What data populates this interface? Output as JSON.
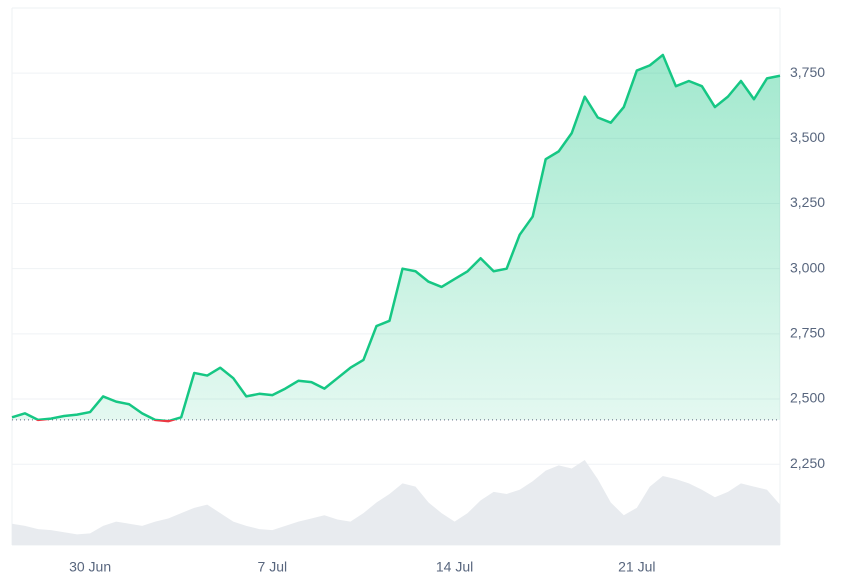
{
  "chart_data": {
    "type": "line",
    "categories": [
      null,
      null,
      null,
      null,
      null,
      null,
      "30 Jun",
      null,
      null,
      null,
      null,
      null,
      null,
      null,
      null,
      null,
      null,
      null,
      null,
      null,
      "7 Jul",
      null,
      null,
      null,
      null,
      null,
      null,
      null,
      null,
      null,
      null,
      null,
      null,
      null,
      "14 Jul",
      null,
      null,
      null,
      null,
      null,
      null,
      null,
      null,
      null,
      null,
      null,
      null,
      null,
      "21 Jul",
      null,
      null,
      null,
      null,
      null,
      null,
      null,
      null,
      null,
      null,
      null
    ],
    "series": [
      {
        "name": "Price",
        "color": "#16c784",
        "values": [
          2430,
          2445,
          2420,
          2425,
          2435,
          2440,
          2450,
          2510,
          2490,
          2480,
          2445,
          2420,
          2415,
          2430,
          2600,
          2590,
          2620,
          2580,
          2510,
          2520,
          2515,
          2540,
          2570,
          2565,
          2540,
          2580,
          2620,
          2650,
          2780,
          2800,
          3000,
          2990,
          2950,
          2930,
          2960,
          2990,
          3040,
          2990,
          3000,
          3130,
          3200,
          3420,
          3450,
          3520,
          3660,
          3580,
          3560,
          3620,
          3760,
          3780,
          3820,
          3700,
          3720,
          3700,
          3620,
          3660,
          3720,
          3650,
          3730,
          3740
        ]
      }
    ],
    "negative_color": "#ea3943",
    "baseline": 2420,
    "volume": {
      "color": "#e8ebef",
      "values": [
        20,
        18,
        15,
        14,
        12,
        10,
        11,
        18,
        22,
        20,
        18,
        22,
        25,
        30,
        35,
        38,
        30,
        22,
        18,
        15,
        14,
        18,
        22,
        25,
        28,
        24,
        22,
        30,
        40,
        48,
        58,
        55,
        40,
        30,
        22,
        30,
        42,
        50,
        48,
        52,
        60,
        70,
        75,
        72,
        80,
        62,
        40,
        28,
        35,
        55,
        65,
        62,
        58,
        52,
        45,
        50,
        58,
        55,
        52,
        38
      ]
    },
    "ylim": [
      1940,
      4000
    ],
    "yticks": [
      {
        "value": 2250,
        "label": "2,250"
      },
      {
        "value": 2500,
        "label": "2,500"
      },
      {
        "value": 2750,
        "label": "2,750"
      },
      {
        "value": 3000,
        "label": "3,000"
      },
      {
        "value": 3250,
        "label": "3,250"
      },
      {
        "value": 3500,
        "label": "3,500"
      },
      {
        "value": 3750,
        "label": "3,750"
      }
    ],
    "grid": true
  }
}
